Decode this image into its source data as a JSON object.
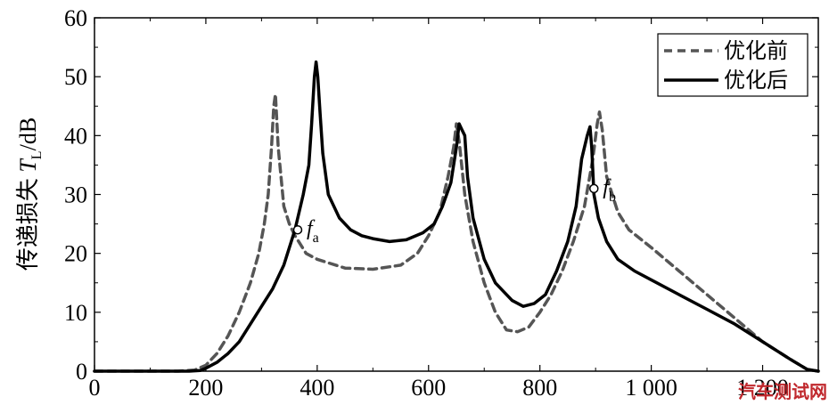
{
  "chart_data": {
    "type": "line",
    "title": "",
    "xlabel": "",
    "ylabel": "传递损失 T_L/dB",
    "ylabel_parts": {
      "main": "传递损失 ",
      "symbol": "T",
      "subscript": "L",
      "unit": "/dB"
    },
    "xlim": [
      0,
      1300
    ],
    "ylim": [
      0,
      60
    ],
    "x_ticks": [
      0,
      200,
      400,
      600,
      800,
      1000,
      1200
    ],
    "x_tick_labels": [
      "0",
      "200",
      "400",
      "600",
      "800",
      "1 000",
      "1 200"
    ],
    "y_ticks": [
      0,
      10,
      20,
      30,
      40,
      50,
      60
    ],
    "y_tick_labels": [
      "0",
      "10",
      "20",
      "30",
      "40",
      "50",
      "60"
    ],
    "grid": false,
    "legend_position": "top-right",
    "series": [
      {
        "name": "优化前",
        "style": "dashed",
        "color": "#555555",
        "points": [
          [
            0,
            0
          ],
          [
            150,
            0
          ],
          [
            180,
            0.2
          ],
          [
            200,
            1
          ],
          [
            220,
            3
          ],
          [
            240,
            6
          ],
          [
            260,
            10
          ],
          [
            280,
            15
          ],
          [
            295,
            20
          ],
          [
            305,
            25
          ],
          [
            312,
            30
          ],
          [
            318,
            38
          ],
          [
            322,
            45
          ],
          [
            325,
            47
          ],
          [
            330,
            38
          ],
          [
            340,
            28
          ],
          [
            350,
            25
          ],
          [
            360,
            23
          ],
          [
            380,
            20
          ],
          [
            400,
            19
          ],
          [
            450,
            17.5
          ],
          [
            500,
            17.3
          ],
          [
            550,
            18
          ],
          [
            580,
            20
          ],
          [
            600,
            23
          ],
          [
            620,
            27
          ],
          [
            635,
            33
          ],
          [
            645,
            38
          ],
          [
            650,
            42
          ],
          [
            655,
            39
          ],
          [
            665,
            30
          ],
          [
            680,
            22
          ],
          [
            700,
            15
          ],
          [
            720,
            10
          ],
          [
            740,
            7
          ],
          [
            760,
            6.7
          ],
          [
            780,
            7.5
          ],
          [
            800,
            10
          ],
          [
            820,
            13
          ],
          [
            840,
            17
          ],
          [
            860,
            22
          ],
          [
            880,
            28
          ],
          [
            895,
            36
          ],
          [
            903,
            42
          ],
          [
            907,
            44
          ],
          [
            912,
            41
          ],
          [
            920,
            33
          ],
          [
            940,
            27
          ],
          [
            960,
            24
          ],
          [
            1000,
            21
          ],
          [
            1050,
            17
          ],
          [
            1100,
            13
          ],
          [
            1150,
            9
          ],
          [
            1200,
            5
          ],
          [
            1250,
            2
          ],
          [
            1280,
            0.3
          ],
          [
            1300,
            0
          ]
        ]
      },
      {
        "name": "优化后",
        "style": "solid",
        "color": "#000000",
        "points": [
          [
            0,
            0
          ],
          [
            170,
            0
          ],
          [
            190,
            0.1
          ],
          [
            200,
            0.5
          ],
          [
            220,
            1.5
          ],
          [
            240,
            3
          ],
          [
            260,
            5
          ],
          [
            280,
            8
          ],
          [
            300,
            11
          ],
          [
            320,
            14
          ],
          [
            340,
            18
          ],
          [
            360,
            24
          ],
          [
            375,
            30
          ],
          [
            385,
            35
          ],
          [
            390,
            42
          ],
          [
            395,
            50
          ],
          [
            398,
            52.5
          ],
          [
            401,
            50
          ],
          [
            405,
            44
          ],
          [
            410,
            37
          ],
          [
            420,
            30
          ],
          [
            440,
            26
          ],
          [
            460,
            24
          ],
          [
            480,
            23
          ],
          [
            500,
            22.5
          ],
          [
            530,
            22
          ],
          [
            560,
            22.3
          ],
          [
            590,
            23.5
          ],
          [
            610,
            25
          ],
          [
            625,
            28
          ],
          [
            640,
            32
          ],
          [
            650,
            38
          ],
          [
            655,
            42
          ],
          [
            660,
            41
          ],
          [
            665,
            40
          ],
          [
            670,
            33
          ],
          [
            680,
            26
          ],
          [
            700,
            19
          ],
          [
            720,
            15
          ],
          [
            750,
            12
          ],
          [
            770,
            11
          ],
          [
            790,
            11.5
          ],
          [
            810,
            13
          ],
          [
            830,
            17
          ],
          [
            850,
            22
          ],
          [
            865,
            28
          ],
          [
            875,
            36
          ],
          [
            885,
            40
          ],
          [
            890,
            41.5
          ],
          [
            893,
            38
          ],
          [
            897,
            30
          ],
          [
            905,
            26
          ],
          [
            920,
            22
          ],
          [
            940,
            19
          ],
          [
            970,
            17
          ],
          [
            1000,
            15.5
          ],
          [
            1050,
            13
          ],
          [
            1100,
            10.5
          ],
          [
            1150,
            8
          ],
          [
            1200,
            5
          ],
          [
            1250,
            2
          ],
          [
            1280,
            0.3
          ],
          [
            1300,
            0
          ]
        ]
      }
    ],
    "annotations": [
      {
        "label": "f",
        "subscript": "a",
        "x": 365,
        "y": 24
      },
      {
        "label": "f",
        "subscript": "b",
        "x": 897,
        "y": 31
      }
    ]
  },
  "legend": {
    "items": [
      {
        "label": "优化前",
        "style": "dashed"
      },
      {
        "label": "优化后",
        "style": "solid"
      }
    ]
  },
  "watermark": {
    "text": "汽车测试网",
    "visible_text": "汽车测试网"
  }
}
